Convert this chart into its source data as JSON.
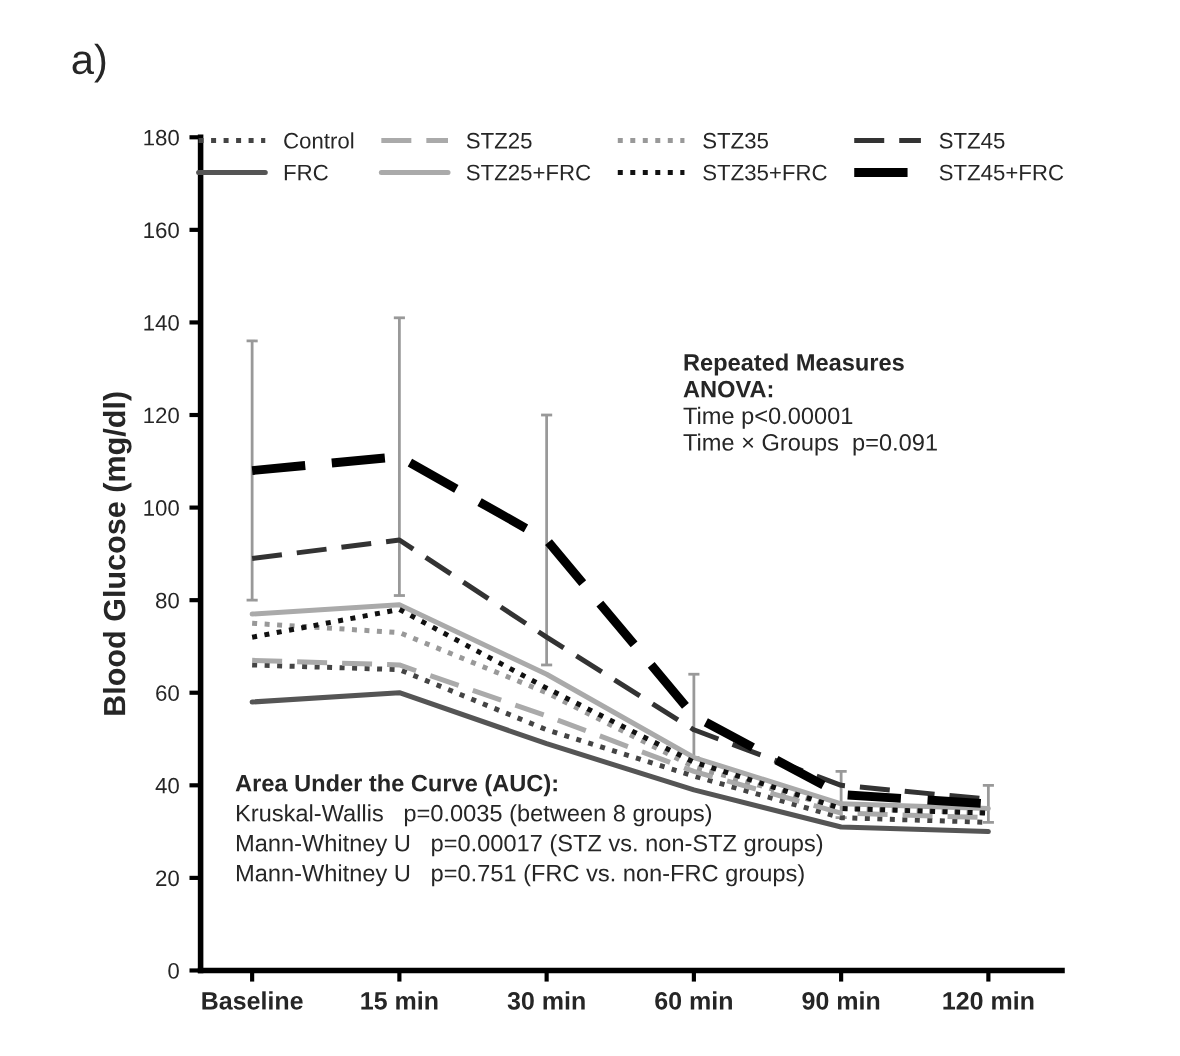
{
  "chart_data": {
    "type": "line",
    "ylabel": "Blood Glucose (mg/dl)",
    "categories": [
      "Baseline",
      "15 min",
      "30 min",
      "60 min",
      "90 min",
      "120 min"
    ],
    "series": [
      {
        "name": "Control",
        "color": "#444444",
        "line_style": "dotted",
        "values": [
          66,
          65,
          52,
          42,
          33,
          32
        ]
      },
      {
        "name": "FRC",
        "color": "#555555",
        "line_style": "solid",
        "values": [
          58,
          60,
          49,
          39,
          31,
          30
        ]
      },
      {
        "name": "STZ25",
        "color": "#aaaaaa",
        "line_style": "dashed",
        "values": [
          67,
          66,
          55,
          43,
          34,
          33
        ]
      },
      {
        "name": "STZ25+FRC",
        "color": "#aaaaaa",
        "line_style": "solid",
        "values": [
          77,
          79,
          64,
          46,
          36,
          35
        ]
      },
      {
        "name": "STZ35",
        "color": "#999999",
        "line_style": "dotted",
        "values": [
          75,
          73,
          60,
          44,
          35,
          34
        ]
      },
      {
        "name": "STZ35+FRC",
        "color": "#111111",
        "line_style": "dotted",
        "values": [
          72,
          78,
          61,
          45,
          35,
          34
        ]
      },
      {
        "name": "STZ45",
        "color": "#333333",
        "line_style": "dashed",
        "values": [
          89,
          93,
          72,
          52,
          40,
          37
        ]
      },
      {
        "name": "STZ45+FRC",
        "color": "#000000",
        "line_style": "dashed",
        "values": [
          108,
          111,
          93,
          55,
          38,
          36
        ],
        "errors": [
          28,
          30,
          27,
          9,
          5,
          4
        ]
      }
    ],
    "ylim": [
      0,
      180
    ],
    "yticks": [
      0,
      20,
      40,
      60,
      80,
      100,
      120,
      140,
      160,
      180
    ],
    "legend": "top",
    "grid": false,
    "marker": "none",
    "annotations": [
      "a)",
      "Repeated Measures",
      "ANOVA:",
      "Time p<0.00001",
      "Time × Groups  p=0.091",
      "Area Under the Curve (AUC):",
      "Kruskal-Wallis   p=0.0035 (between 8 groups)",
      "Mann-Whitney U   p=0.00017 (STZ vs. non-STZ groups)",
      "Mann-Whitney U   p=0.751 (FRC vs. non-FRC groups)"
    ]
  }
}
